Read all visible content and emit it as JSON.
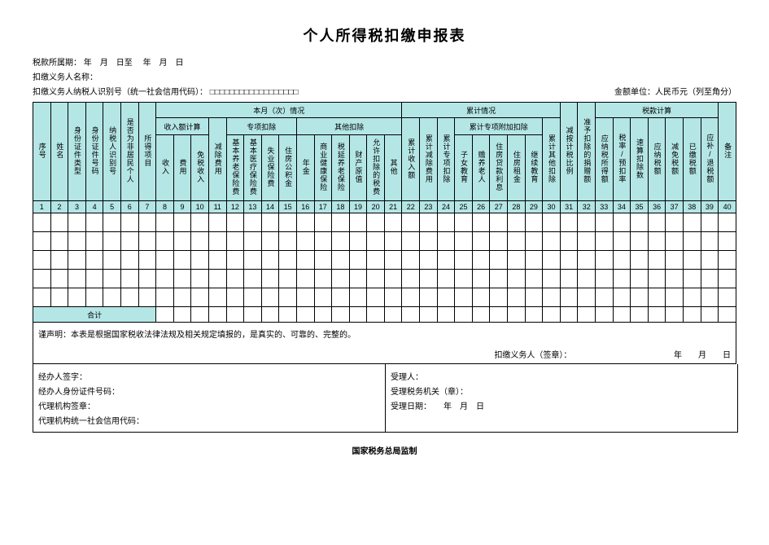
{
  "title": "个人所得税扣缴申报表",
  "meta": {
    "period_label": "税款所属期：",
    "period_mid": "年　月　日至",
    "period_end": "年　月　日",
    "withholder_name_label": "扣缴义务人名称：",
    "withholder_id_label": "扣缴义务人纳税人识别号（统一社会信用代码）：",
    "id_boxes": "□□□□□□□□□□□□□□□□□□",
    "unit_label": "金额单位：人民币元（列至角分）"
  },
  "group_headers": {
    "this_month": "本月（次）情况",
    "cumulative": "累计情况",
    "tax_calc": "税款计算",
    "income_calc": "收入额计算",
    "special_ded": "专项扣除",
    "other_ded": "其他扣除",
    "cum_special_add": "累计专项附加扣除"
  },
  "cols": [
    "序号",
    "姓名",
    "身份证件类型",
    "身份证件号码",
    "纳税人识别号",
    "是否为非居民个人",
    "所得项目",
    "收入",
    "费用",
    "免税收入",
    "减除费用",
    "基本养老保险费",
    "基本医疗保险费",
    "失业保险费",
    "住房公积金",
    "年金",
    "商业健康保险",
    "税延养老保险",
    "财产原值",
    "允许扣除的税费",
    "其他",
    "累计收入额",
    "累计减除费用",
    "累计专项扣除",
    "子女教育",
    "赡养老人",
    "住房贷款利息",
    "住房租金",
    "继续教育",
    "累计其他扣除",
    "减按计税比例",
    "准予扣除的捐赠额",
    "应纳税所得额",
    "税率/预扣率",
    "速算扣除数",
    "应纳税额",
    "减免税额",
    "已缴税额",
    "应补/退税额",
    "备注"
  ],
  "num_row": [
    "1",
    "2",
    "3",
    "4",
    "5",
    "6",
    "7",
    "8",
    "9",
    "10",
    "11",
    "12",
    "13",
    "14",
    "15",
    "16",
    "17",
    "18",
    "19",
    "20",
    "21",
    "22",
    "23",
    "24",
    "25",
    "26",
    "27",
    "28",
    "29",
    "30",
    "31",
    "32",
    "33",
    "34",
    "35",
    "36",
    "37",
    "38",
    "39",
    "40"
  ],
  "sum_label": "合计",
  "declaration": {
    "text": "谨声明：本表是根据国家税收法律法规及相关规定填报的，是真实的、可靠的、完整的。",
    "signer": "扣缴义务人（签章）：",
    "date": "年　　月　　日"
  },
  "bottom_left": {
    "l1": "经办人签字：",
    "l2": "经办人身份证件号码：",
    "l3": "代理机构签章：",
    "l4": "代理机构统一社会信用代码："
  },
  "bottom_right": {
    "l1": "受理人：",
    "l2": "受理税务机关（章）：",
    "l3": "受理日期：　　年　月　日"
  },
  "footer": "国家税务总局监制",
  "n_blank_rows": 5,
  "colors": {
    "header_bg": "#b5e6e6",
    "border": "#000000",
    "page_bg": "#ffffff"
  }
}
